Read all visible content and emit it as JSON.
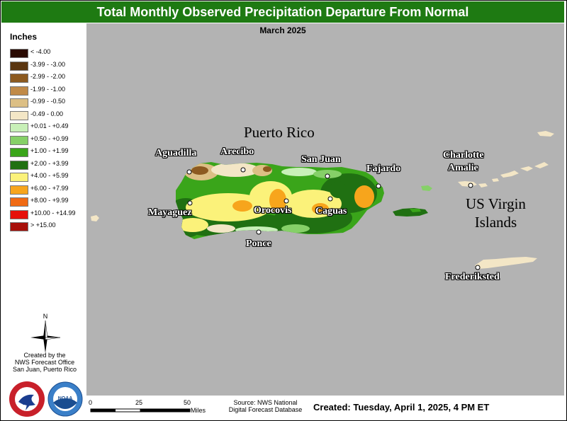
{
  "title": "Total Monthly Observed Precipitation Departure From Normal",
  "subtitle": "March 2025",
  "legend": {
    "title": "Inches",
    "items": [
      {
        "label": "< -4.00",
        "color": "#2a0a02"
      },
      {
        "label": "-3.99 - -3.00",
        "color": "#5a3510"
      },
      {
        "label": "-2.99 - -2.00",
        "color": "#8c5a20"
      },
      {
        "label": "-1.99 - -1.00",
        "color": "#c08a48"
      },
      {
        "label": "-0.99 - -0.50",
        "color": "#dcbf85"
      },
      {
        "label": "-0.49 - 0.00",
        "color": "#f3e6c6"
      },
      {
        "label": "+0.01 - +0.49",
        "color": "#c8f0b8"
      },
      {
        "label": "+0.50 - +0.99",
        "color": "#86d068"
      },
      {
        "label": "+1.00 - +1.99",
        "color": "#3aa51a"
      },
      {
        "label": "+2.00 - +3.99",
        "color": "#207012"
      },
      {
        "label": "+4.00 - +5.99",
        "color": "#fbf27a"
      },
      {
        "label": "+6.00 - +7.99",
        "color": "#f7a51c"
      },
      {
        "label": "+8.00 - +9.99",
        "color": "#f06a14"
      },
      {
        "label": "+10.00 - +14.99",
        "color": "#e6100a"
      },
      {
        "label": "> +15.00",
        "color": "#a8100a"
      }
    ]
  },
  "north_label": "N",
  "credit": {
    "line1": "Created by the",
    "line2": "NWS Forecast Office",
    "line3": "San Juan, Puerto Rico"
  },
  "logos": {
    "nws_text": "NATIONAL WEATHER SERVICE",
    "noaa_text": "NOAA"
  },
  "scale": {
    "ticks": [
      "0",
      "25",
      "50"
    ],
    "unit": "Miles"
  },
  "source": {
    "line1": "Source: NWS National",
    "line2": "Digital Forecast Database"
  },
  "created": "Created: Tuesday, April 1, 2025, 4 PM ET",
  "regions": {
    "puerto_rico": "Puerto Rico",
    "usvi_line1": "US Virgin",
    "usvi_line2": "Islands"
  },
  "cities": [
    {
      "name": "Aguadilla"
    },
    {
      "name": "Arecibo"
    },
    {
      "name": "San Juan"
    },
    {
      "name": "Fajardo"
    },
    {
      "name": "Charlotte"
    },
    {
      "name": "Amalie"
    },
    {
      "name": "Mayaguez"
    },
    {
      "name": "Orocovis"
    },
    {
      "name": "Caguas"
    },
    {
      "name": "Ponce"
    },
    {
      "name": "Frederiksted"
    }
  ]
}
